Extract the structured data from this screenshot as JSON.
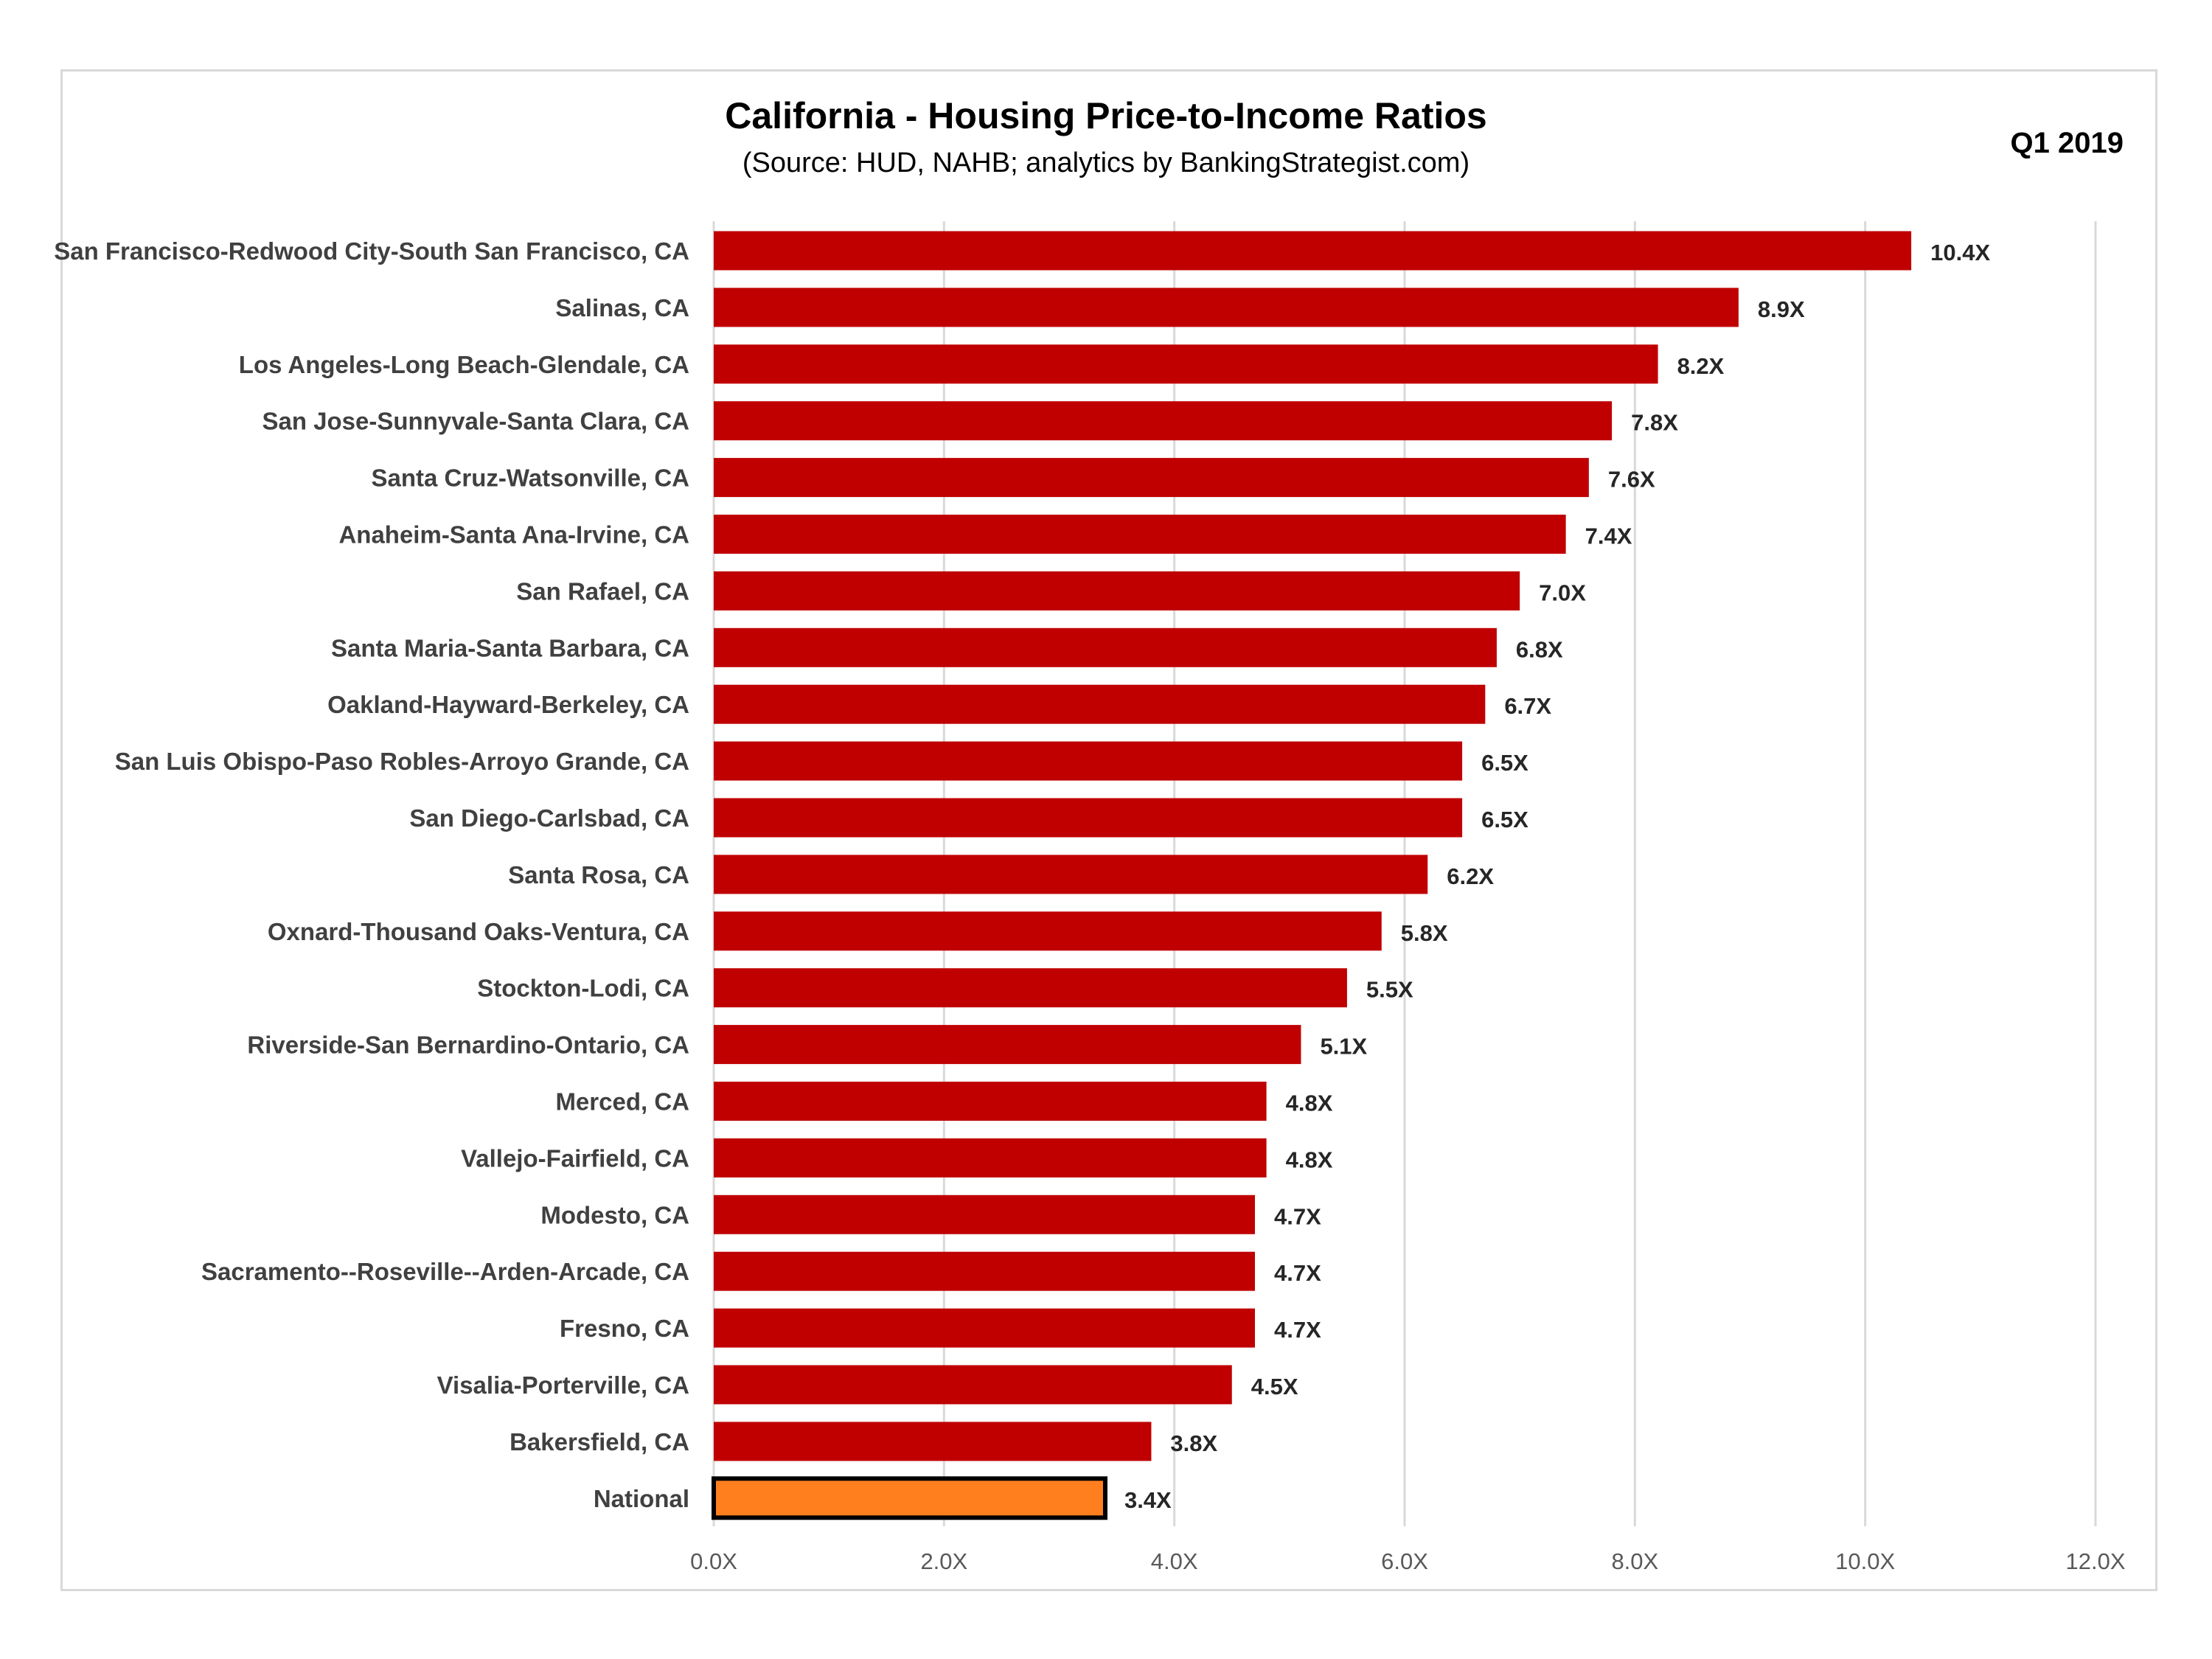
{
  "header": {
    "title": "California - Housing Price-to-Income Ratios",
    "subtitle": "(Source: HUD, NAHB; analytics by BankingStrategist.com)",
    "period": "Q1 2019"
  },
  "colors": {
    "bar": "#c00000",
    "highlight_bar": "#ff7f1f",
    "highlight_border": "#000000",
    "gridline": "#d9d9d9"
  },
  "chart_data": {
    "type": "bar",
    "orientation": "horizontal",
    "title": "California - Housing Price-to-Income Ratios",
    "subtitle": "(Source: HUD, NAHB; analytics by BankingStrategist.com)",
    "categories": [
      "San Francisco-Redwood City-South San Francisco, CA",
      "Salinas, CA",
      "Los Angeles-Long Beach-Glendale, CA",
      "San Jose-Sunnyvale-Santa Clara, CA",
      "Santa Cruz-Watsonville, CA",
      "Anaheim-Santa Ana-Irvine, CA",
      "San Rafael, CA",
      "Santa Maria-Santa Barbara, CA",
      "Oakland-Hayward-Berkeley, CA",
      "San Luis Obispo-Paso Robles-Arroyo Grande, CA",
      "San Diego-Carlsbad, CA",
      "Santa Rosa, CA",
      "Oxnard-Thousand Oaks-Ventura, CA",
      "Stockton-Lodi, CA",
      "Riverside-San Bernardino-Ontario, CA",
      "Merced, CA",
      "Vallejo-Fairfield, CA",
      "Modesto, CA",
      "Sacramento--Roseville--Arden-Arcade, CA",
      "Fresno, CA",
      "Visalia-Porterville, CA",
      "Bakersfield, CA",
      "National"
    ],
    "values": [
      10.4,
      8.9,
      8.2,
      7.8,
      7.6,
      7.4,
      7.0,
      6.8,
      6.7,
      6.5,
      6.5,
      6.2,
      5.8,
      5.5,
      5.1,
      4.8,
      4.8,
      4.7,
      4.7,
      4.7,
      4.5,
      3.8,
      3.4
    ],
    "value_labels": [
      "10.4X",
      "8.9X",
      "8.2X",
      "7.8X",
      "7.6X",
      "7.4X",
      "7.0X",
      "6.8X",
      "6.7X",
      "6.5X",
      "6.5X",
      "6.2X",
      "5.8X",
      "5.5X",
      "5.1X",
      "4.8X",
      "4.8X",
      "4.7X",
      "4.7X",
      "4.7X",
      "4.5X",
      "3.8X",
      "3.4X"
    ],
    "highlight_category": "National",
    "xlim": [
      0,
      12
    ],
    "x_ticks": [
      0,
      2,
      4,
      6,
      8,
      10,
      12
    ],
    "x_tick_labels": [
      "0.0X",
      "2.0X",
      "4.0X",
      "6.0X",
      "8.0X",
      "10.0X",
      "12.0X"
    ],
    "grid": "vertical",
    "legend": "none"
  }
}
